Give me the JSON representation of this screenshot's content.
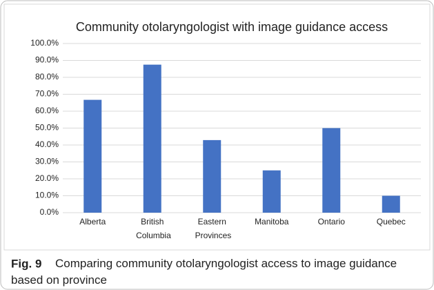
{
  "chart_data": {
    "type": "bar",
    "title": "Community otolaryngologist with image guidance access",
    "categories": [
      "Alberta",
      "British Columbia",
      "Eastern Provinces",
      "Manitoba",
      "Ontario",
      "Quebec"
    ],
    "values": [
      66.7,
      87.5,
      42.9,
      25,
      50,
      10
    ],
    "color": "#4472c4",
    "ylim": [
      0,
      100
    ],
    "yticks": [
      {
        "value": 0,
        "label": "0.0%"
      },
      {
        "value": 10,
        "label": "10.0%"
      },
      {
        "value": 20,
        "label": "20.0%"
      },
      {
        "value": 30,
        "label": "30.0%"
      },
      {
        "value": 40,
        "label": "40.0%"
      },
      {
        "value": 50,
        "label": "50.0%"
      },
      {
        "value": 60,
        "label": "60.0%"
      },
      {
        "value": 70,
        "label": "70.0%"
      },
      {
        "value": 80,
        "label": "80.0%"
      },
      {
        "value": 90,
        "label": "90.0%"
      },
      {
        "value": 100,
        "label": "100.0%"
      }
    ],
    "grid": true
  },
  "caption": {
    "label": "Fig. 9",
    "text": "Comparing community otolaryngologist access to image guidance based on province"
  }
}
